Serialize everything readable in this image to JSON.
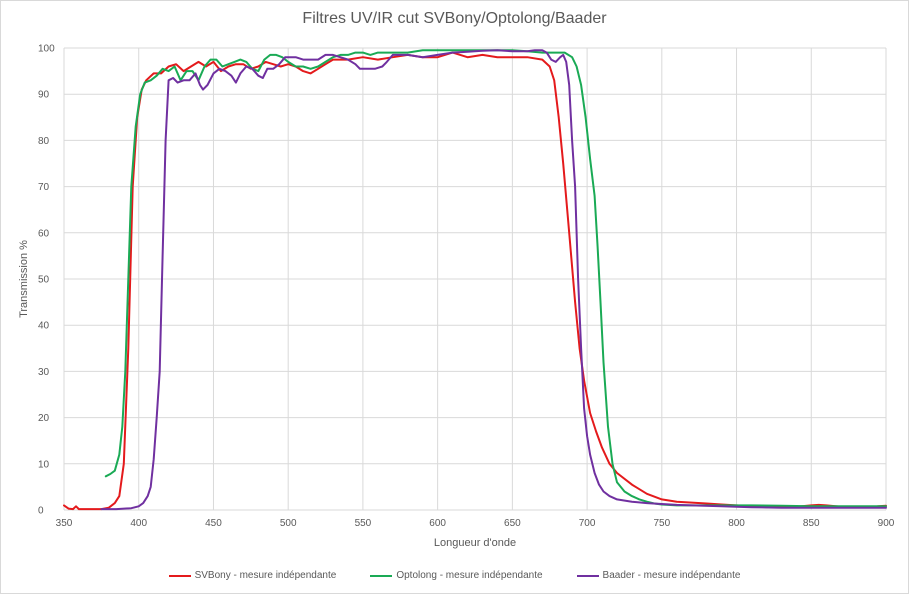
{
  "chart_data": {
    "type": "line",
    "title": "Filtres UV/IR cut SVBony/Optolong/Baader",
    "xlabel": "Longueur d'onde",
    "ylabel": "Transmission %",
    "xlim": [
      350,
      900
    ],
    "ylim": [
      0,
      100
    ],
    "xticks": [
      350,
      400,
      450,
      500,
      550,
      600,
      650,
      700,
      750,
      800,
      850,
      900
    ],
    "yticks": [
      0,
      10,
      20,
      30,
      40,
      50,
      60,
      70,
      80,
      90,
      100
    ],
    "grid": true,
    "legend_position": "bottom",
    "series": [
      {
        "name": "SVBony - mesure indépendante",
        "color": "#e41a1c",
        "points": [
          [
            350,
            1
          ],
          [
            353,
            0.3
          ],
          [
            356,
            0.2
          ],
          [
            358,
            0.8
          ],
          [
            360,
            0.2
          ],
          [
            365,
            0.2
          ],
          [
            375,
            0.2
          ],
          [
            380,
            0.5
          ],
          [
            384,
            1.5
          ],
          [
            387,
            3
          ],
          [
            390,
            10
          ],
          [
            393,
            35
          ],
          [
            396,
            70
          ],
          [
            399,
            85
          ],
          [
            402,
            91
          ],
          [
            405,
            93
          ],
          [
            410,
            94.5
          ],
          [
            415,
            94.5
          ],
          [
            420,
            96
          ],
          [
            425,
            96.5
          ],
          [
            430,
            95
          ],
          [
            435,
            96
          ],
          [
            440,
            97
          ],
          [
            445,
            96
          ],
          [
            450,
            97
          ],
          [
            455,
            95
          ],
          [
            460,
            96
          ],
          [
            465,
            96.5
          ],
          [
            470,
            96.5
          ],
          [
            475,
            95.5
          ],
          [
            480,
            96
          ],
          [
            485,
            97
          ],
          [
            490,
            96.5
          ],
          [
            495,
            96
          ],
          [
            500,
            96.5
          ],
          [
            505,
            96
          ],
          [
            510,
            95
          ],
          [
            515,
            94.5
          ],
          [
            520,
            95.5
          ],
          [
            525,
            96.5
          ],
          [
            530,
            97.5
          ],
          [
            540,
            97.5
          ],
          [
            550,
            98
          ],
          [
            560,
            97.5
          ],
          [
            570,
            98
          ],
          [
            580,
            98.5
          ],
          [
            590,
            98
          ],
          [
            600,
            98
          ],
          [
            610,
            99
          ],
          [
            620,
            98
          ],
          [
            630,
            98.5
          ],
          [
            640,
            98
          ],
          [
            650,
            98
          ],
          [
            660,
            98
          ],
          [
            670,
            97.5
          ],
          [
            675,
            96
          ],
          [
            678,
            93
          ],
          [
            681,
            85
          ],
          [
            684,
            75
          ],
          [
            688,
            60
          ],
          [
            692,
            45
          ],
          [
            695,
            35
          ],
          [
            698,
            28
          ],
          [
            702,
            21
          ],
          [
            706,
            17
          ],
          [
            710,
            13.5
          ],
          [
            715,
            10
          ],
          [
            720,
            8
          ],
          [
            730,
            5.5
          ],
          [
            740,
            3.5
          ],
          [
            750,
            2.3
          ],
          [
            760,
            1.8
          ],
          [
            770,
            1.6
          ],
          [
            780,
            1.4
          ],
          [
            790,
            1.2
          ],
          [
            800,
            1
          ],
          [
            810,
            0.8
          ],
          [
            820,
            0.6
          ],
          [
            830,
            0.6
          ],
          [
            840,
            0.7
          ],
          [
            850,
            1
          ],
          [
            855,
            1.1
          ],
          [
            860,
            1
          ],
          [
            870,
            0.7
          ],
          [
            880,
            0.6
          ],
          [
            890,
            0.6
          ],
          [
            895,
            0.8
          ],
          [
            900,
            0.9
          ]
        ]
      },
      {
        "name": "Optolong - mesure indépendante",
        "color": "#1aaa55",
        "points": [
          [
            378,
            7.3
          ],
          [
            381,
            7.8
          ],
          [
            384,
            8.5
          ],
          [
            387,
            12
          ],
          [
            389,
            18
          ],
          [
            391,
            30
          ],
          [
            393,
            50
          ],
          [
            395,
            70
          ],
          [
            398,
            83
          ],
          [
            401,
            90
          ],
          [
            404,
            92.5
          ],
          [
            408,
            93
          ],
          [
            412,
            94
          ],
          [
            416,
            95.5
          ],
          [
            420,
            95
          ],
          [
            424,
            96
          ],
          [
            428,
            93
          ],
          [
            432,
            95
          ],
          [
            436,
            95
          ],
          [
            440,
            93
          ],
          [
            444,
            96
          ],
          [
            448,
            97.5
          ],
          [
            452,
            97.5
          ],
          [
            456,
            96
          ],
          [
            460,
            96.5
          ],
          [
            464,
            97
          ],
          [
            468,
            97.5
          ],
          [
            472,
            97
          ],
          [
            476,
            95.5
          ],
          [
            480,
            95
          ],
          [
            484,
            97.5
          ],
          [
            488,
            98.5
          ],
          [
            492,
            98.5
          ],
          [
            496,
            98
          ],
          [
            500,
            97
          ],
          [
            505,
            96
          ],
          [
            510,
            96
          ],
          [
            515,
            95.5
          ],
          [
            520,
            96
          ],
          [
            525,
            97
          ],
          [
            530,
            98
          ],
          [
            535,
            98.5
          ],
          [
            540,
            98.5
          ],
          [
            545,
            99
          ],
          [
            550,
            99
          ],
          [
            555,
            98.5
          ],
          [
            560,
            99
          ],
          [
            570,
            99
          ],
          [
            580,
            99
          ],
          [
            590,
            99.5
          ],
          [
            600,
            99.5
          ],
          [
            610,
            99.5
          ],
          [
            620,
            99.5
          ],
          [
            630,
            99.5
          ],
          [
            640,
            99.5
          ],
          [
            650,
            99.5
          ],
          [
            660,
            99.3
          ],
          [
            670,
            99
          ],
          [
            675,
            99
          ],
          [
            680,
            99
          ],
          [
            685,
            99
          ],
          [
            690,
            98
          ],
          [
            693,
            96
          ],
          [
            696,
            92
          ],
          [
            699,
            85
          ],
          [
            702,
            76
          ],
          [
            705,
            68
          ],
          [
            707,
            57
          ],
          [
            709,
            45
          ],
          [
            711,
            32
          ],
          [
            714,
            18
          ],
          [
            717,
            10
          ],
          [
            720,
            6
          ],
          [
            725,
            4
          ],
          [
            730,
            3
          ],
          [
            735,
            2.3
          ],
          [
            740,
            1.8
          ],
          [
            745,
            1.4
          ],
          [
            750,
            1.2
          ],
          [
            760,
            1
          ],
          [
            770,
            1
          ],
          [
            790,
            1
          ],
          [
            810,
            1
          ],
          [
            830,
            0.9
          ],
          [
            850,
            0.8
          ],
          [
            870,
            0.8
          ],
          [
            890,
            0.8
          ],
          [
            900,
            0.8
          ]
        ]
      },
      {
        "name": "Baader - mesure indépendante",
        "color": "#7030a0",
        "points": [
          [
            375,
            0.2
          ],
          [
            385,
            0.2
          ],
          [
            395,
            0.4
          ],
          [
            400,
            0.8
          ],
          [
            403,
            1.5
          ],
          [
            406,
            3
          ],
          [
            408,
            5
          ],
          [
            410,
            11
          ],
          [
            412,
            20
          ],
          [
            414,
            30
          ],
          [
            416,
            55
          ],
          [
            418,
            80
          ],
          [
            420,
            93
          ],
          [
            423,
            93.5
          ],
          [
            426,
            92.5
          ],
          [
            430,
            93
          ],
          [
            434,
            93
          ],
          [
            438,
            94.5
          ],
          [
            441,
            92
          ],
          [
            443,
            91
          ],
          [
            446,
            92
          ],
          [
            450,
            94.5
          ],
          [
            454,
            95.5
          ],
          [
            458,
            95
          ],
          [
            462,
            94
          ],
          [
            465,
            92.5
          ],
          [
            468,
            94.5
          ],
          [
            472,
            96
          ],
          [
            476,
            95.5
          ],
          [
            480,
            94
          ],
          [
            483,
            93.5
          ],
          [
            486,
            95.5
          ],
          [
            490,
            95.5
          ],
          [
            494,
            96.5
          ],
          [
            498,
            98
          ],
          [
            505,
            98
          ],
          [
            510,
            97.5
          ],
          [
            515,
            97.5
          ],
          [
            520,
            97.5
          ],
          [
            525,
            98.5
          ],
          [
            530,
            98.5
          ],
          [
            540,
            97.5
          ],
          [
            545,
            96.5
          ],
          [
            548,
            95.5
          ],
          [
            552,
            95.5
          ],
          [
            558,
            95.5
          ],
          [
            563,
            96
          ],
          [
            566,
            97
          ],
          [
            570,
            98.5
          ],
          [
            575,
            98.5
          ],
          [
            580,
            98.5
          ],
          [
            590,
            98
          ],
          [
            600,
            98.5
          ],
          [
            610,
            99
          ],
          [
            620,
            99.2
          ],
          [
            630,
            99.4
          ],
          [
            640,
            99.5
          ],
          [
            650,
            99.3
          ],
          [
            660,
            99.3
          ],
          [
            665,
            99.5
          ],
          [
            670,
            99.5
          ],
          [
            673,
            99
          ],
          [
            676,
            97.5
          ],
          [
            679,
            97
          ],
          [
            682,
            98
          ],
          [
            684,
            98.5
          ],
          [
            686,
            97
          ],
          [
            688,
            92
          ],
          [
            690,
            80
          ],
          [
            692,
            70
          ],
          [
            694,
            50
          ],
          [
            696,
            35
          ],
          [
            698,
            22
          ],
          [
            700,
            16
          ],
          [
            702,
            12
          ],
          [
            705,
            8
          ],
          [
            708,
            5.5
          ],
          [
            711,
            4
          ],
          [
            715,
            3
          ],
          [
            720,
            2.3
          ],
          [
            730,
            1.8
          ],
          [
            740,
            1.5
          ],
          [
            750,
            1.3
          ],
          [
            760,
            1.1
          ],
          [
            770,
            1
          ],
          [
            790,
            0.8
          ],
          [
            810,
            0.6
          ],
          [
            830,
            0.5
          ],
          [
            850,
            0.5
          ],
          [
            870,
            0.5
          ],
          [
            890,
            0.5
          ],
          [
            900,
            0.5
          ]
        ]
      }
    ]
  }
}
